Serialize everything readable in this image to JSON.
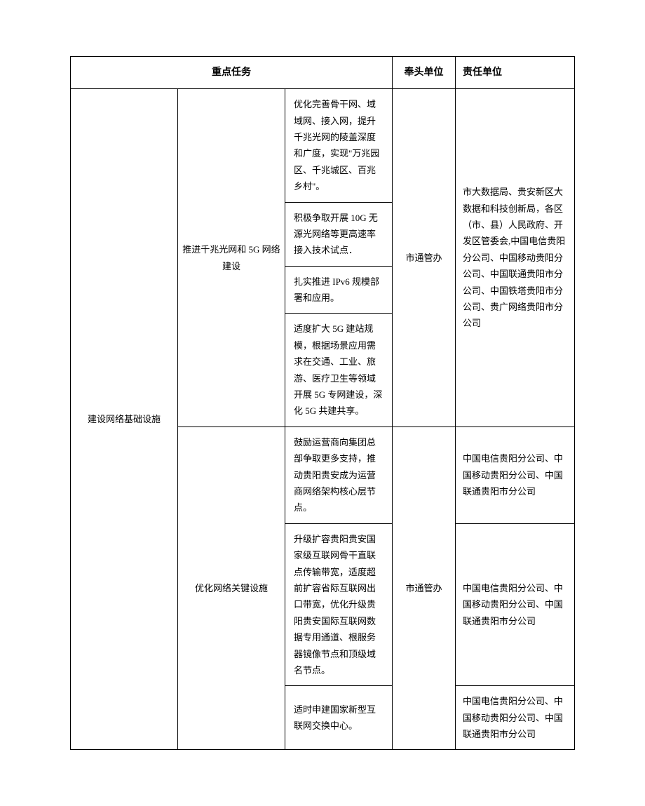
{
  "headers": {
    "task": "重点任务",
    "lead": "奉头单位",
    "resp": "责任单位"
  },
  "category": "建设网络基础设施",
  "sub1": "推进千兆光网和 5G 网络建设",
  "sub2": "优化网络关键设施",
  "tasks": {
    "t1": "优化完善骨干网、域域网、接入网，提升千兆光网的陵盖深度和广度，实现\"万兆园区、千兆城区、百兆乡村\"。",
    "t2": "积极争取开展 10G 无源光网络等更高速率接入技术试点．",
    "t3": "扎实推进 IPv6 规模部署和应用。",
    "t4": "适度扩大 5G 建站规模，根据场景应用需求在交通、工业、旅游、医疗卫生等领域开展 5G 专网建设，深化 5G 共建共享。",
    "t5": "鼓励运营商向集团总部争取更多支持，推动贵阳贵安成为运营商网络架构核心层节点。",
    "t6": "升级扩容贵阳贵安国家级互联网骨干直联点传输带宽，适度超前扩容省际互联网出口带宽，优化升级贵阳贵安国际互联网数据专用通道、根服务器镜像节点和顶级域名节点。",
    "t7": "适时申建国家新型互联网交换中心。"
  },
  "lead": {
    "group1": "市通管办",
    "group2": "市通管办"
  },
  "resp": {
    "r1": "市大数据局、贵安新区大数据和科技创新局，各区（市、县）人民政府、开发区管委会,中国电信贵阳分公司、中国移动贵阳分公司、中国联通贵阳市分公司、中国铁塔贵阳市分公司、贵广网络贵阳市分公司",
    "r2": "中国电信贵阳分公司、中国移动贵阳分公司、中国联通贵阳市分公司",
    "r3": "中国电信贵阳分公司、中国移动贵阳分公司、中国联通贵阳市分公司",
    "r4": "中国电信贵阳分公司、中国移动贵阳分公司、中国联通贵阳市分公司"
  }
}
